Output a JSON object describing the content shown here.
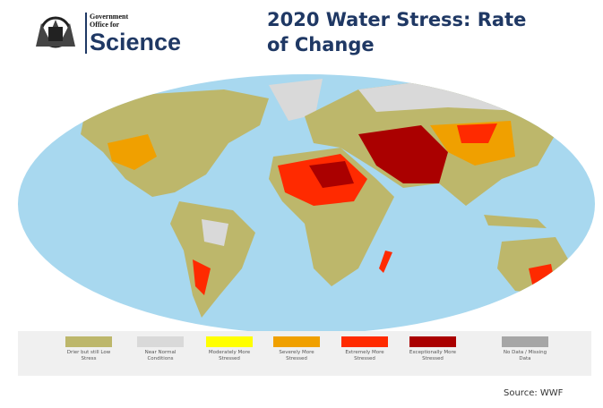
{
  "header": {
    "org": [
      "Government",
      "Office for",
      "Science"
    ],
    "title": "2020 Water Stress: Rate of Change"
  },
  "legend": {
    "items": [
      {
        "label": "Drier but still Low Stress",
        "color": "#bdb76b"
      },
      {
        "label": "Near Normal Conditions",
        "color": "#d9d9d9"
      },
      {
        "label": "Moderately More Stressed",
        "color": "#ffff00"
      },
      {
        "label": "Severely More Stressed",
        "color": "#f0a000"
      },
      {
        "label": "Extremely More Stressed",
        "color": "#ff2a00"
      },
      {
        "label": "Exceptionally More Stressed",
        "color": "#aa0000"
      },
      {
        "label": "No Data / Missing Data",
        "color": "#a6a6a6"
      }
    ]
  },
  "footer": {
    "source": "Source: WWF"
  }
}
